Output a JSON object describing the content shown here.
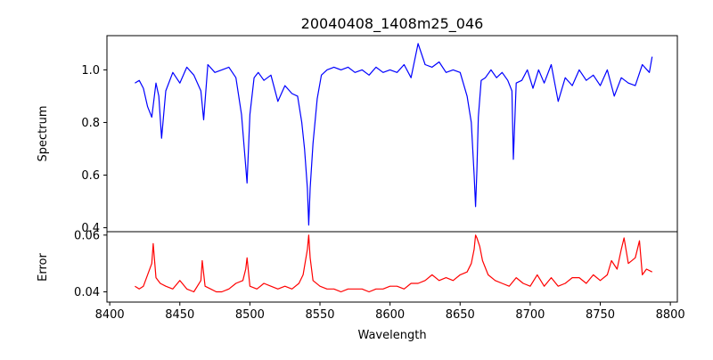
{
  "figure": {
    "title": "20040408_1408m25_046"
  },
  "chart_data": [
    {
      "type": "line",
      "panel": "spectrum",
      "title": "20040408_1408m25_046",
      "xlabel": "",
      "ylabel": "Spectrum",
      "xlim": [
        8398,
        8805
      ],
      "ylim": [
        0.385,
        1.13
      ],
      "yticks": [
        0.4,
        0.6,
        0.8,
        1.0
      ],
      "ytick_labels": [
        "0.4",
        "0.6",
        "0.8",
        "1.0"
      ],
      "grid": false,
      "legend": "none",
      "color": "#0000ff",
      "series": [
        {
          "x": [
            8418,
            8421,
            8424,
            8427,
            8430,
            8433,
            8435,
            8437,
            8440,
            8445,
            8450,
            8455,
            8460,
            8465,
            8467,
            8470,
            8475,
            8480,
            8485,
            8490,
            8494,
            8496,
            8498,
            8500,
            8503,
            8506,
            8510,
            8515,
            8520,
            8525,
            8530,
            8534,
            8537,
            8539,
            8541,
            8542,
            8543,
            8545,
            8548,
            8551,
            8555,
            8560,
            8565,
            8570,
            8575,
            8580,
            8585,
            8590,
            8595,
            8600,
            8605,
            8610,
            8615,
            8620,
            8625,
            8630,
            8635,
            8640,
            8645,
            8650,
            8655,
            8658,
            8660,
            8661,
            8662,
            8663,
            8665,
            8668,
            8672,
            8676,
            8680,
            8684,
            8687,
            8688,
            8690,
            8694,
            8698,
            8702,
            8706,
            8710,
            8715,
            8720,
            8725,
            8730,
            8735,
            8740,
            8745,
            8750,
            8755,
            8760,
            8765,
            8770,
            8775,
            8780,
            8785,
            8787
          ],
          "y": [
            0.95,
            0.96,
            0.93,
            0.86,
            0.82,
            0.95,
            0.9,
            0.74,
            0.92,
            0.99,
            0.95,
            1.01,
            0.98,
            0.92,
            0.81,
            1.02,
            0.99,
            1.0,
            1.01,
            0.97,
            0.83,
            0.7,
            0.57,
            0.83,
            0.97,
            0.99,
            0.96,
            0.98,
            0.88,
            0.94,
            0.91,
            0.9,
            0.8,
            0.7,
            0.55,
            0.41,
            0.55,
            0.72,
            0.89,
            0.98,
            1.0,
            1.01,
            1.0,
            1.01,
            0.99,
            1.0,
            0.98,
            1.01,
            0.99,
            1.0,
            0.99,
            1.02,
            0.97,
            1.1,
            1.02,
            1.01,
            1.03,
            0.99,
            1.0,
            0.99,
            0.9,
            0.8,
            0.6,
            0.48,
            0.62,
            0.82,
            0.96,
            0.97,
            1.0,
            0.97,
            0.99,
            0.96,
            0.92,
            0.66,
            0.95,
            0.96,
            1.0,
            0.93,
            1.0,
            0.95,
            1.02,
            0.88,
            0.97,
            0.94,
            1.0,
            0.96,
            0.98,
            0.94,
            1.0,
            0.9,
            0.97,
            0.95,
            0.94,
            1.02,
            0.99,
            1.05
          ]
        }
      ]
    },
    {
      "type": "line",
      "panel": "error",
      "xlabel": "Wavelength",
      "ylabel": "Error",
      "xlim": [
        8398,
        8805
      ],
      "ylim": [
        0.0364,
        0.0612
      ],
      "xticks": [
        8400,
        8450,
        8500,
        8550,
        8600,
        8650,
        8700,
        8750,
        8800
      ],
      "xtick_labels": [
        "8400",
        "8450",
        "8500",
        "8550",
        "8600",
        "8650",
        "8700",
        "8750",
        "8800"
      ],
      "yticks": [
        0.04,
        0.06
      ],
      "ytick_labels": [
        "0.04",
        "0.06"
      ],
      "grid": false,
      "legend": "none",
      "color": "#ff0000",
      "series": [
        {
          "x": [
            8418,
            8421,
            8424,
            8427,
            8430,
            8431,
            8433,
            8436,
            8440,
            8445,
            8450,
            8455,
            8460,
            8465,
            8466,
            8468,
            8472,
            8476,
            8480,
            8485,
            8490,
            8495,
            8497,
            8498,
            8500,
            8505,
            8510,
            8515,
            8520,
            8525,
            8530,
            8535,
            8538,
            8541,
            8542,
            8543,
            8545,
            8550,
            8555,
            8560,
            8565,
            8570,
            8575,
            8580,
            8585,
            8590,
            8595,
            8600,
            8605,
            8610,
            8615,
            8620,
            8625,
            8630,
            8635,
            8640,
            8645,
            8650,
            8655,
            8658,
            8660,
            8661,
            8662,
            8664,
            8666,
            8670,
            8675,
            8680,
            8685,
            8690,
            8695,
            8700,
            8705,
            8710,
            8715,
            8720,
            8725,
            8730,
            8735,
            8740,
            8745,
            8750,
            8755,
            8758,
            8762,
            8765,
            8767,
            8770,
            8775,
            8778,
            8780,
            8783,
            8787
          ],
          "y": [
            0.042,
            0.041,
            0.042,
            0.046,
            0.05,
            0.057,
            0.045,
            0.043,
            0.042,
            0.041,
            0.044,
            0.041,
            0.04,
            0.044,
            0.051,
            0.042,
            0.041,
            0.04,
            0.04,
            0.041,
            0.043,
            0.044,
            0.048,
            0.052,
            0.042,
            0.041,
            0.043,
            0.042,
            0.041,
            0.042,
            0.041,
            0.043,
            0.046,
            0.055,
            0.06,
            0.052,
            0.044,
            0.042,
            0.041,
            0.041,
            0.04,
            0.041,
            0.041,
            0.041,
            0.04,
            0.041,
            0.041,
            0.042,
            0.042,
            0.041,
            0.043,
            0.043,
            0.044,
            0.046,
            0.044,
            0.045,
            0.044,
            0.046,
            0.047,
            0.05,
            0.055,
            0.06,
            0.059,
            0.056,
            0.051,
            0.046,
            0.044,
            0.043,
            0.042,
            0.045,
            0.043,
            0.042,
            0.046,
            0.042,
            0.045,
            0.042,
            0.043,
            0.045,
            0.045,
            0.043,
            0.046,
            0.044,
            0.046,
            0.051,
            0.048,
            0.055,
            0.059,
            0.05,
            0.052,
            0.058,
            0.046,
            0.048,
            0.047
          ]
        }
      ]
    }
  ]
}
